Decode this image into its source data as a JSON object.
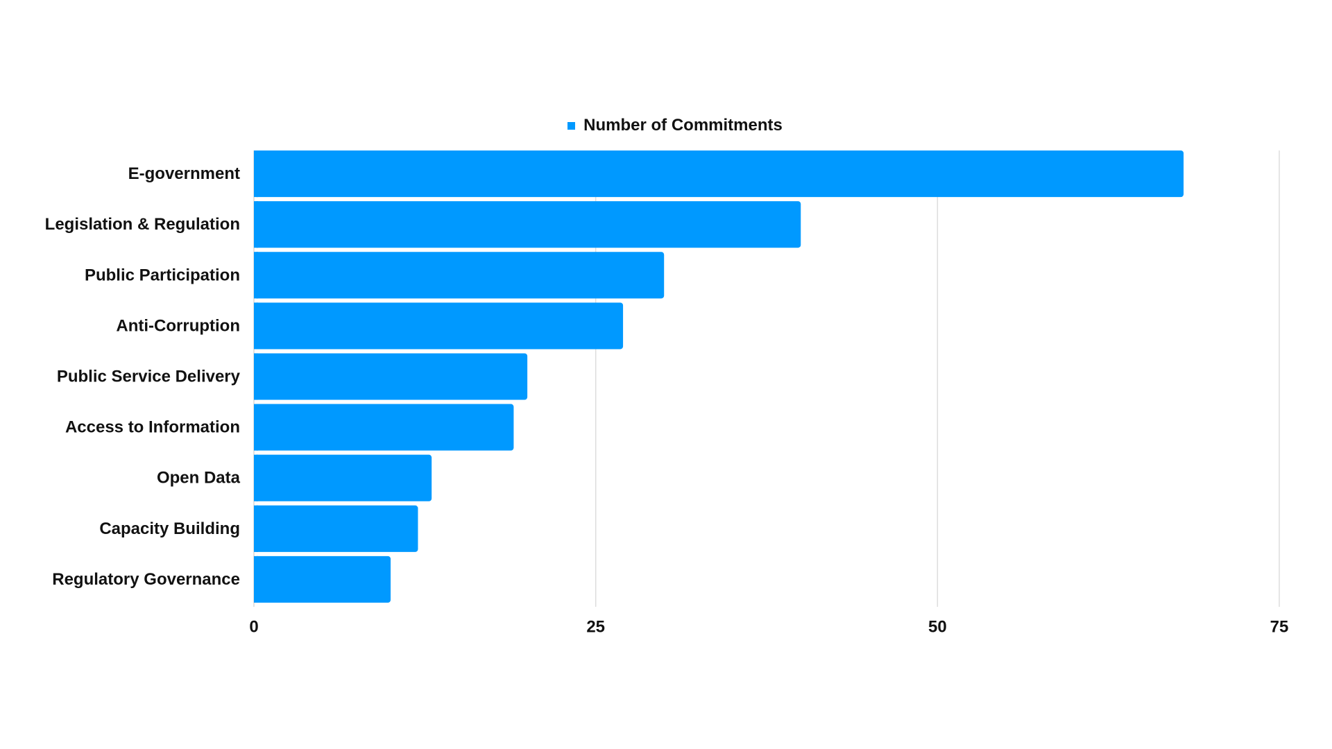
{
  "chart_data": {
    "type": "bar",
    "orientation": "horizontal",
    "categories": [
      "E-government",
      "Legislation & Regulation",
      "Public Participation",
      "Anti-Corruption",
      "Public Service Delivery",
      "Access to Information",
      "Open Data",
      "Capacity Building",
      "Regulatory Governance"
    ],
    "series": [
      {
        "name": "Number of Commitments",
        "values": [
          68,
          40,
          30,
          27,
          20,
          19,
          13,
          12,
          10
        ]
      }
    ],
    "xlim": [
      0,
      75
    ],
    "xticks": [
      "0",
      "25",
      "50",
      "75"
    ],
    "grid": true,
    "legend": "top-center",
    "colors": {
      "bar": "#0099ff",
      "grid": "#dddddd",
      "text": "#111111"
    }
  }
}
